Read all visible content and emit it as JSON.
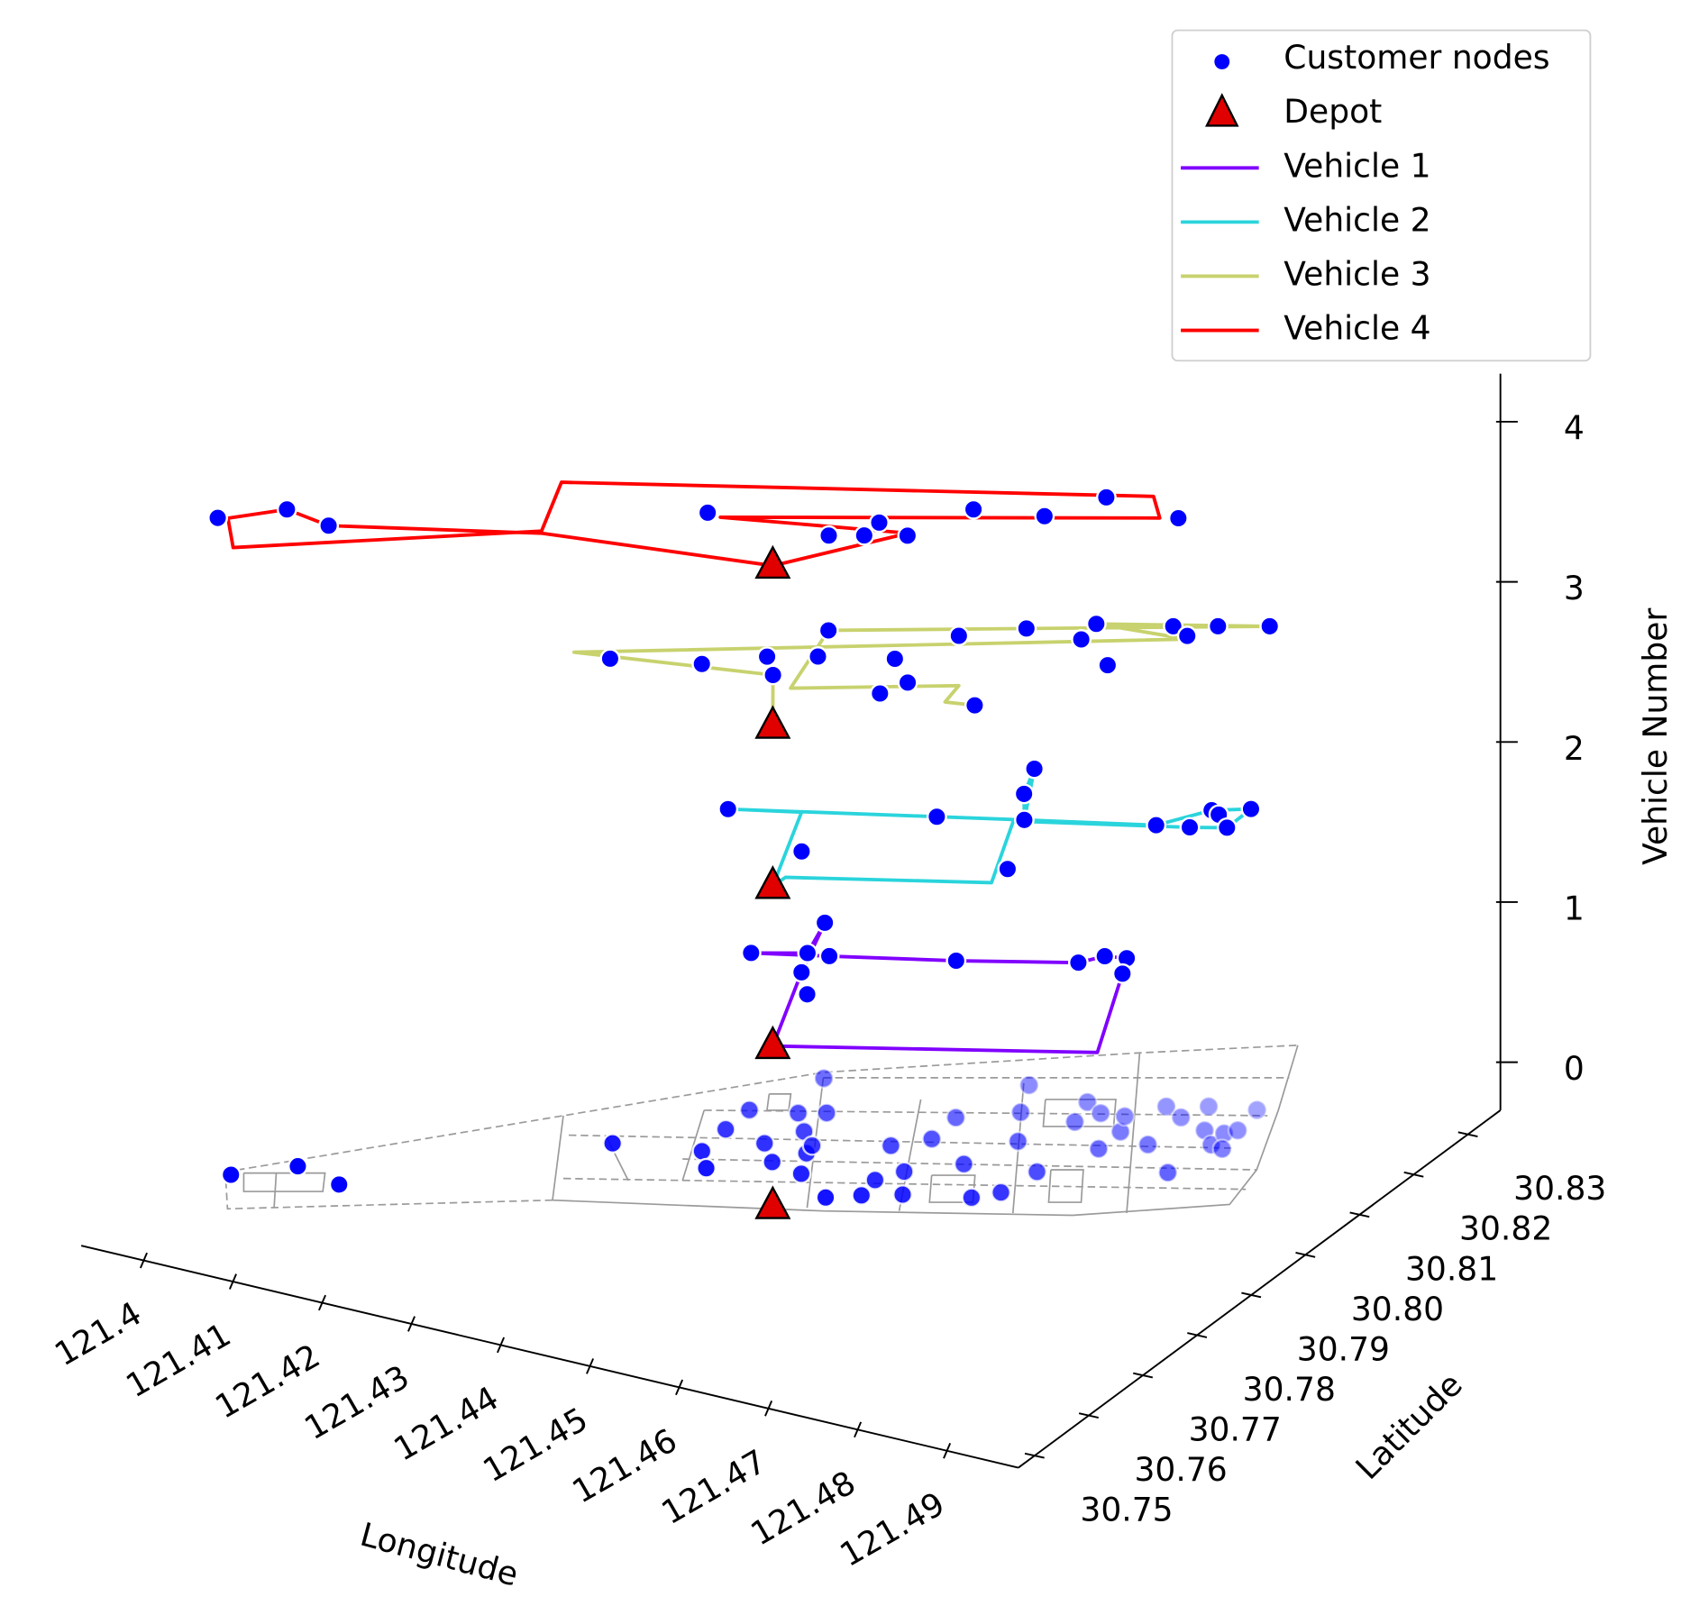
{
  "chart_data": {
    "type": "scatter3d",
    "xlabel": "Longitude",
    "ylabel": "Latitude",
    "zlabel": "Vehicle Number",
    "xlim": [
      121.393,
      121.498
    ],
    "ylim": [
      30.747,
      30.836
    ],
    "zlim": [
      -0.3,
      4.3
    ],
    "xticks": [
      121.4,
      121.41,
      121.42,
      121.43,
      121.44,
      121.45,
      121.46,
      121.47,
      121.48,
      121.49
    ],
    "yticks": [
      30.75,
      30.76,
      30.77,
      30.78,
      30.79,
      {
        "value": 30.8,
        "label": "30.80"
      },
      30.81,
      30.82,
      30.83
    ],
    "zticks": [
      0,
      1,
      2,
      3,
      4
    ],
    "grid": false,
    "legend": "upper right",
    "customers": {
      "name": "Customer nodes",
      "color": "#0000ff",
      "z": 0,
      "lon": [
        121.4031,
        121.4078,
        121.4134,
        121.4319,
        121.4404,
        121.4427,
        121.4399,
        121.4397,
        121.4448,
        121.4476,
        121.4442,
        121.4514,
        121.4468,
        121.4495,
        121.4491,
        121.4424,
        121.4466,
        121.4562,
        121.459,
        121.4584,
        121.4558,
        121.4624,
        121.4599,
        121.4585,
        121.4581,
        121.4641,
        121.4686,
        121.4705,
        121.4661,
        121.463,
        121.4606,
        121.4712,
        121.4687,
        121.4675,
        121.4699,
        121.4738,
        121.4737,
        121.4723,
        121.4775,
        121.4747,
        121.4824,
        121.4772,
        121.4783,
        121.4807,
        121.4829,
        121.4827,
        121.4843,
        121.4835,
        121.4828
      ],
      "lat": [
        30.758,
        30.7626,
        30.761,
        30.781,
        30.7835,
        30.7805,
        30.7887,
        30.7934,
        30.7878,
        30.7846,
        30.795,
        30.7837,
        30.7918,
        30.7878,
        30.7895,
        30.8027,
        30.7963,
        30.7803,
        30.7823,
        30.7858,
        30.793,
        30.7843,
        30.7887,
        30.7961,
        30.8012,
        30.7928,
        30.7868,
        30.7891,
        30.7995,
        30.8051,
        30.8106,
        30.7946,
        30.8057,
        30.81,
        30.8085,
        30.8017,
        30.8059,
        30.809,
        30.8047,
        30.8127,
        30.8003,
        30.8113,
        30.8146,
        30.8099,
        30.8075,
        30.8102,
        30.8072,
        30.8114,
        30.8161
      ]
    },
    "depot": {
      "name": "Depot",
      "color": "#e00000",
      "lon": 121.4527,
      "lat": 30.7763,
      "z": [
        0,
        1,
        2,
        3,
        4
      ]
    },
    "series": [
      {
        "name": "Vehicle 1",
        "color": "#8000ff",
        "z": 1,
        "route_lon": [
          121.4527,
          121.4467,
          121.443,
          121.445,
          121.4402,
          121.4472,
          121.4585,
          121.4691,
          121.4706,
          121.4727,
          121.4741,
          121.481,
          121.4527
        ],
        "route_lat": [
          30.7763,
          30.7915,
          30.8019,
          30.7954,
          30.7929,
          30.7958,
          30.8006,
          30.8057,
          30.8081,
          30.8087,
          30.8056,
          30.7896,
          30.7763
        ],
        "stop_lon": [
          121.4402,
          121.445,
          121.443,
          121.4472,
          121.4467,
          121.4497,
          121.4585,
          121.4691,
          121.4706,
          121.4727,
          121.4741
        ],
        "stop_lat": [
          30.7929,
          30.7954,
          30.8019,
          30.7958,
          30.7915,
          30.7876,
          30.8006,
          30.8057,
          30.8081,
          30.8087,
          30.8056
        ]
      },
      {
        "name": "Vehicle 2",
        "color": "#2ad4dc",
        "z": 2,
        "route_lon": [
          121.4527,
          121.4467,
          121.4401,
          121.4587,
          121.4665,
          121.4615,
          121.4635,
          121.4665,
          121.4783,
          121.4813,
          121.4845,
          121.4846,
          121.4814,
          121.4657,
          121.4709,
          121.4528,
          121.4527
        ],
        "route_lat": [
          30.7763,
          30.7915,
          30.7888,
          30.7967,
          30.8,
          30.8101,
          30.8049,
          30.8,
          30.8049,
          30.8102,
          30.8122,
          30.8076,
          30.806,
          30.7993,
          30.7867,
          30.7785,
          30.7763
        ],
        "stop_lon": [
          121.4401,
          121.4512,
          121.4587,
          121.4615,
          121.4635,
          121.4665,
          121.4707,
          121.4783,
          121.4814,
          121.4813,
          121.4824,
          121.4846,
          121.4845
        ],
        "stop_lat": [
          30.7888,
          30.7841,
          30.7967,
          30.8101,
          30.8049,
          30.8,
          30.79,
          30.8049,
          30.806,
          30.8102,
          30.8097,
          30.8076,
          30.8122
        ]
      },
      {
        "name": "Vehicle 3",
        "color": "#c8d26e",
        "z": 3,
        "route_lon": [
          121.4527,
          121.4469,
          121.4274,
          121.478,
          121.4685,
          121.4835,
          121.4465,
          121.4499,
          121.4639,
          121.4646,
          121.4675
        ],
        "route_lat": [
          30.7763,
          30.7859,
          30.7813,
          30.8112,
          30.81,
          30.8173,
          30.7968,
          30.7842,
          30.7922,
          30.7885,
          30.7892
        ],
        "stop_lon": [
          121.4312,
          121.4396,
          121.4443,
          121.4469,
          121.4486,
          121.4465,
          121.4581,
          121.4554,
          121.4592,
          121.4582,
          121.4675,
          121.4631,
          121.469,
          121.4685,
          121.4742,
          121.4753,
          121.4776,
          121.4791,
          121.4835
        ],
        "stop_lat": [
          30.7817,
          30.7848,
          30.7891,
          30.7859,
          30.7914,
          30.7968,
          30.7872,
          30.7944,
          30.7905,
          30.8016,
          30.7892,
          30.806,
          30.8064,
          30.81,
          30.8027,
          30.813,
          30.8118,
          30.815,
          30.8173
        ]
      },
      {
        "name": "Vehicle 4",
        "color": "#ff0000",
        "z": 4,
        "route_lon": [
          121.4527,
          121.4605,
          121.4427,
          121.4801,
          121.4771,
          121.4252,
          121.4291,
          121.4048,
          121.401,
          121.405,
          121.4104,
          121.4294,
          121.4527
        ],
        "route_lat": [
          30.7763,
          30.7885,
          30.7831,
          30.8026,
          30.8064,
          30.7826,
          30.7725,
          30.7556,
          30.7609,
          30.7652,
          30.764,
          30.7721,
          30.7763
        ],
        "stop_lon": [
          121.4001,
          121.405,
          121.4104,
          121.4411,
          121.454,
          121.457,
          121.4568,
          121.4607,
          121.4633,
          121.4701,
          121.4732,
          121.4817
        ],
        "stop_lat": [
          30.7605,
          30.7652,
          30.764,
          30.7834,
          30.7845,
          30.7861,
          30.7892,
          30.788,
          30.7959,
          30.7978,
          30.8041,
          30.8034
        ]
      }
    ]
  }
}
